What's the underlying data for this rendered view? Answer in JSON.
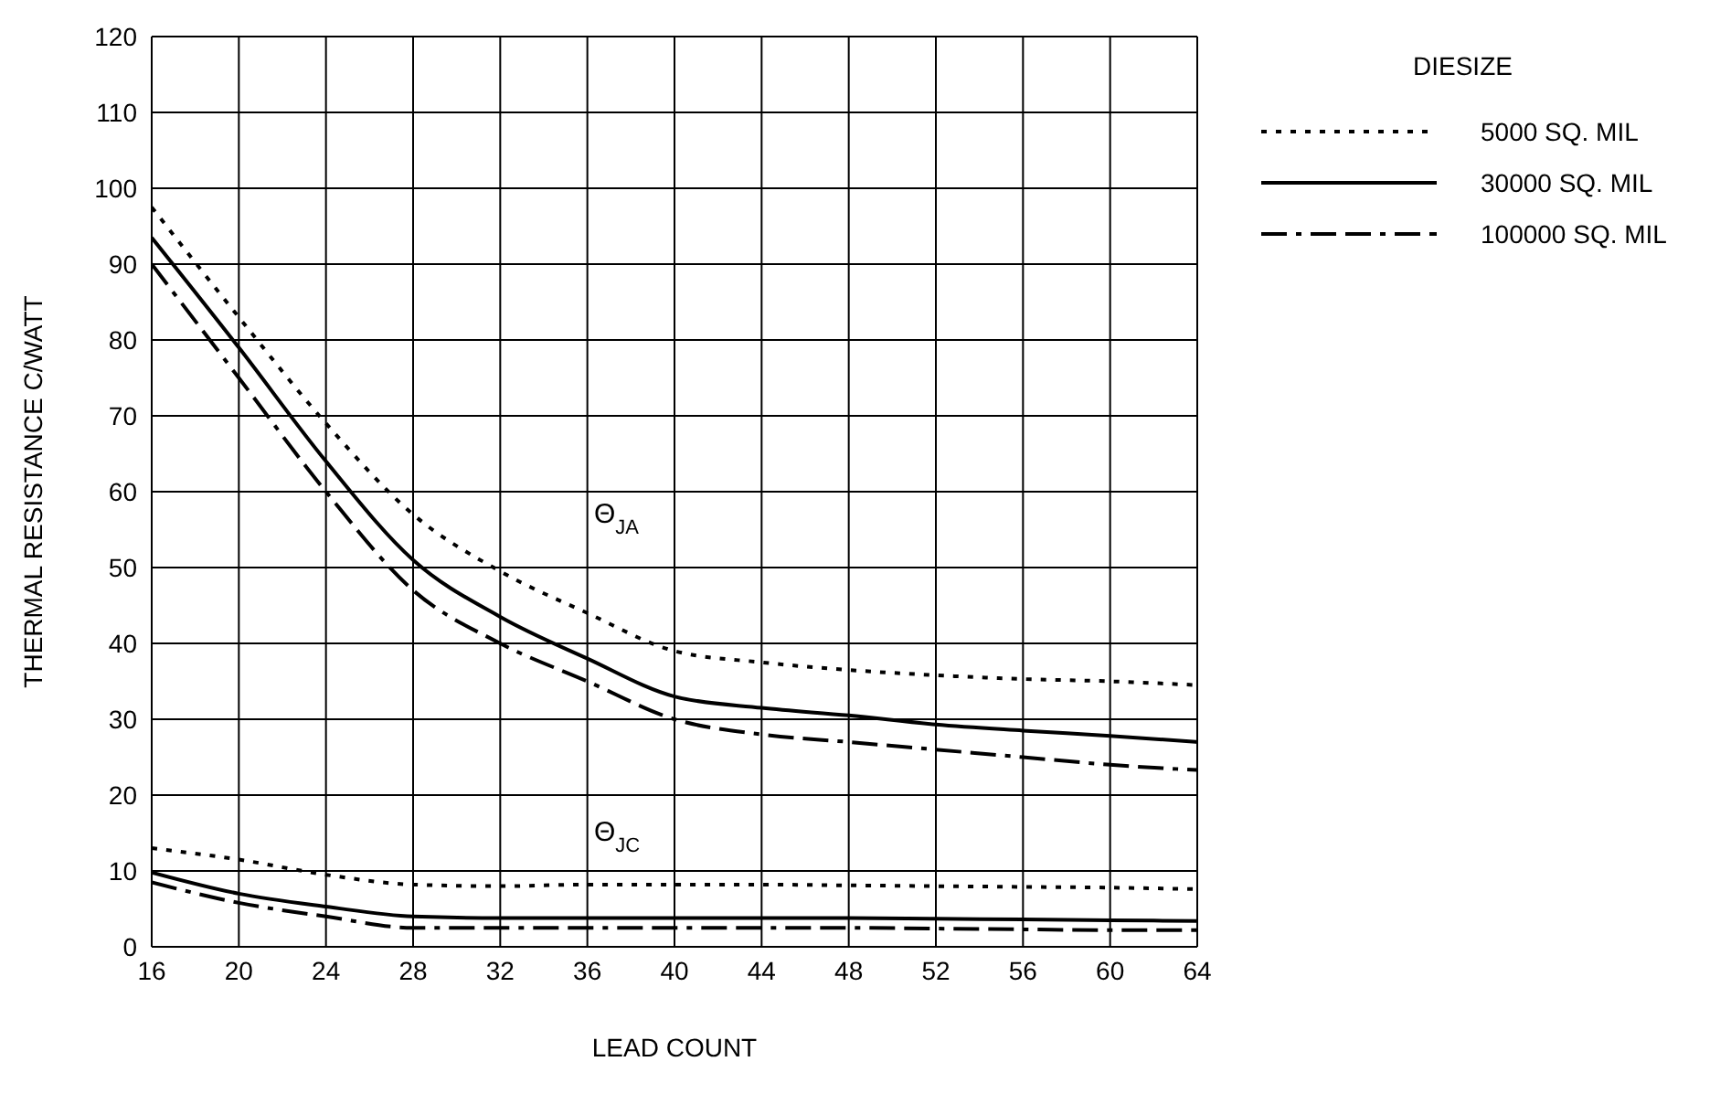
{
  "chart_data": {
    "type": "line",
    "xlabel": "LEAD COUNT",
    "ylabel": "THERMAL RESISTANCE C/WATT",
    "legend_title": "DIESIZE",
    "legend": "right",
    "grid": true,
    "marker": "none",
    "x": [
      16,
      20,
      24,
      28,
      32,
      36,
      40,
      44,
      48,
      52,
      56,
      60,
      64
    ],
    "xlim": [
      16,
      64
    ],
    "xticks": [
      16,
      20,
      24,
      28,
      32,
      36,
      40,
      44,
      48,
      52,
      56,
      60,
      64
    ],
    "ylim": [
      0,
      120
    ],
    "yticks": [
      0,
      10,
      20,
      30,
      40,
      50,
      60,
      70,
      80,
      90,
      100,
      110,
      120
    ],
    "series": [
      {
        "name": "5000 SQ. MIL",
        "color": "#000000",
        "line_style": "dotted",
        "values": [
          97.5,
          83,
          69,
          57,
          49.5,
          44,
          39,
          37.5,
          36.5,
          35.8,
          35.3,
          35,
          34.5
        ]
      },
      {
        "name": "30000 SQ. MIL",
        "color": "#000000",
        "line_style": "solid",
        "values": [
          93.5,
          79,
          64,
          51,
          43.5,
          38,
          33,
          31.5,
          30.5,
          29.3,
          28.5,
          27.8,
          27
        ]
      },
      {
        "name": "100000 SQ. MIL",
        "color": "#000000",
        "line_style": "dashed",
        "values": [
          90,
          75,
          60,
          47,
          40,
          35,
          30,
          28,
          27,
          26,
          25,
          24,
          23.3
        ]
      },
      {
        "color": "#000000",
        "line_style": "dotted",
        "values": [
          13,
          11.5,
          9.5,
          8.2,
          8,
          8.2,
          8.2,
          8.2,
          8.1,
          8,
          7.9,
          7.8,
          7.6
        ]
      },
      {
        "color": "#000000",
        "line_style": "solid",
        "values": [
          9.8,
          7,
          5.3,
          4,
          3.8,
          3.8,
          3.8,
          3.8,
          3.8,
          3.7,
          3.6,
          3.5,
          3.4
        ]
      },
      {
        "color": "#000000",
        "line_style": "dashed",
        "values": [
          8.5,
          5.8,
          4,
          2.5,
          2.5,
          2.5,
          2.5,
          2.5,
          2.5,
          2.4,
          2.3,
          2.2,
          2.2
        ]
      }
    ],
    "annotations": [
      "Θ$_{JA}$",
      "Θ$_{JC}$"
    ]
  }
}
